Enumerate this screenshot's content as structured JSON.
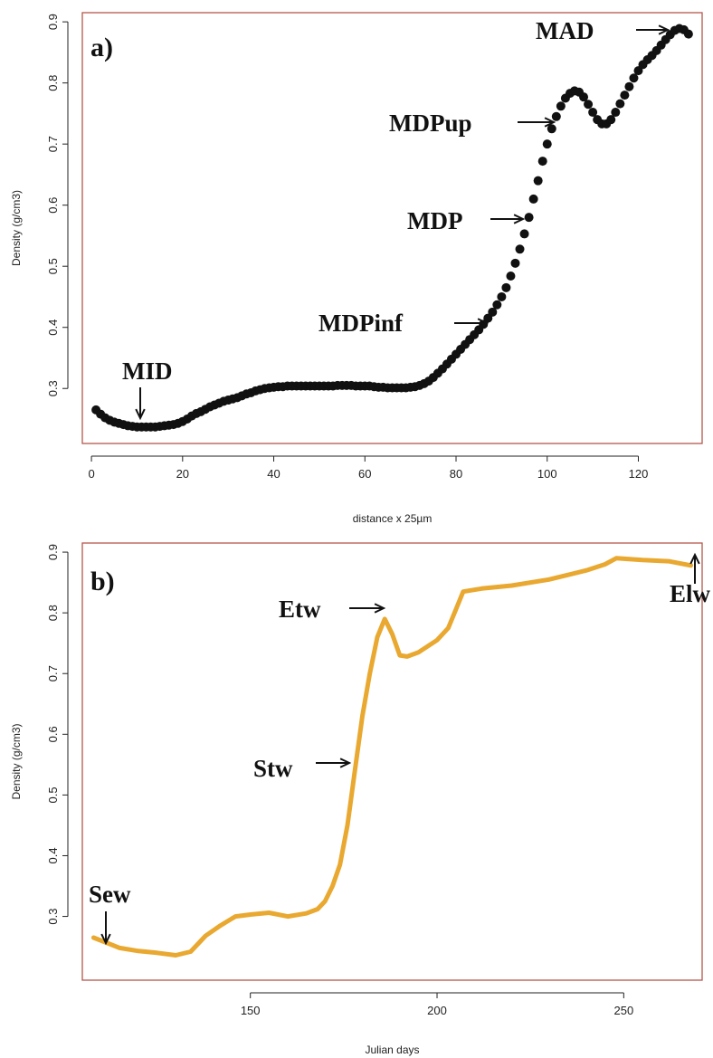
{
  "colors": {
    "frame": "#b5574a",
    "axis": "#222222",
    "series_a": "#111111",
    "series_b": "#e9a830",
    "annotation": "#111111"
  },
  "chart_data": [
    {
      "type": "scatter",
      "panel_label": "a)",
      "xlabel": "distance x 25µm",
      "ylabel": "Density (g/cm3)",
      "xlim": [
        -2,
        134
      ],
      "ylim": [
        0.21,
        0.915
      ],
      "xticks": [
        0,
        20,
        40,
        60,
        80,
        100,
        120
      ],
      "yticks": [
        0.3,
        0.4,
        0.5,
        0.6,
        0.7,
        0.8,
        0.9
      ],
      "grid": false,
      "x": [
        1,
        2,
        3,
        4,
        5,
        6,
        7,
        8,
        9,
        10,
        11,
        12,
        13,
        14,
        15,
        16,
        17,
        18,
        19,
        20,
        21,
        22,
        23,
        24,
        25,
        26,
        27,
        28,
        29,
        30,
        31,
        32,
        33,
        34,
        35,
        36,
        37,
        38,
        39,
        40,
        41,
        42,
        43,
        44,
        45,
        46,
        47,
        48,
        49,
        50,
        51,
        52,
        53,
        54,
        55,
        56,
        57,
        58,
        59,
        60,
        61,
        62,
        63,
        64,
        65,
        66,
        67,
        68,
        69,
        70,
        71,
        72,
        73,
        74,
        75,
        76,
        77,
        78,
        79,
        80,
        81,
        82,
        83,
        84,
        85,
        86,
        87,
        88,
        89,
        90,
        91,
        92,
        93,
        94,
        95,
        96,
        97,
        98,
        99,
        100,
        101,
        102,
        103,
        104,
        105,
        106,
        107,
        108,
        109,
        110,
        111,
        112,
        113,
        114,
        115,
        116,
        117,
        118,
        119,
        120,
        121,
        122,
        123,
        124,
        125,
        126,
        127,
        128,
        129,
        130,
        131
      ],
      "y": [
        0.265,
        0.258,
        0.252,
        0.248,
        0.245,
        0.243,
        0.241,
        0.239,
        0.238,
        0.237,
        0.237,
        0.237,
        0.237,
        0.237,
        0.238,
        0.239,
        0.24,
        0.241,
        0.243,
        0.246,
        0.25,
        0.255,
        0.259,
        0.262,
        0.266,
        0.27,
        0.273,
        0.276,
        0.279,
        0.281,
        0.283,
        0.285,
        0.288,
        0.291,
        0.293,
        0.296,
        0.298,
        0.3,
        0.301,
        0.302,
        0.303,
        0.303,
        0.304,
        0.304,
        0.304,
        0.304,
        0.304,
        0.304,
        0.304,
        0.304,
        0.304,
        0.304,
        0.304,
        0.305,
        0.305,
        0.305,
        0.305,
        0.304,
        0.304,
        0.304,
        0.304,
        0.303,
        0.302,
        0.302,
        0.301,
        0.301,
        0.301,
        0.301,
        0.301,
        0.302,
        0.303,
        0.305,
        0.308,
        0.312,
        0.318,
        0.325,
        0.332,
        0.34,
        0.348,
        0.356,
        0.364,
        0.372,
        0.38,
        0.388,
        0.396,
        0.405,
        0.415,
        0.425,
        0.437,
        0.45,
        0.465,
        0.484,
        0.505,
        0.528,
        0.553,
        0.58,
        0.61,
        0.64,
        0.672,
        0.7,
        0.725,
        0.745,
        0.762,
        0.775,
        0.783,
        0.787,
        0.785,
        0.777,
        0.765,
        0.752,
        0.74,
        0.733,
        0.733,
        0.74,
        0.752,
        0.766,
        0.78,
        0.794,
        0.808,
        0.82,
        0.83,
        0.838,
        0.845,
        0.853,
        0.862,
        0.871,
        0.879,
        0.886,
        0.889,
        0.887,
        0.88
      ],
      "annotations": [
        {
          "text": "MID",
          "x": 9,
          "y": 0.237,
          "direction": "down"
        },
        {
          "text": "MDPinf",
          "x": 88,
          "y": 0.4,
          "direction": "right"
        },
        {
          "text": "MDP",
          "x": 96,
          "y": 0.572,
          "direction": "right"
        },
        {
          "text": "MDPup",
          "x": 101,
          "y": 0.733,
          "direction": "right"
        },
        {
          "text": "MAD",
          "x": 124,
          "y": 0.887,
          "direction": "right"
        }
      ]
    },
    {
      "type": "line",
      "panel_label": "b)",
      "xlabel": "Julian days",
      "ylabel": "Density (g/cm3)",
      "xlim": [
        105,
        271
      ],
      "ylim": [
        0.195,
        0.915
      ],
      "xticks": [
        150,
        200,
        250
      ],
      "yticks": [
        0.3,
        0.4,
        0.5,
        0.6,
        0.7,
        0.8,
        0.9
      ],
      "grid": false,
      "x": [
        108,
        115,
        120,
        125,
        130,
        134,
        138,
        142,
        146,
        150,
        155,
        160,
        165,
        168,
        170,
        172,
        174,
        176,
        178,
        180,
        182,
        184,
        186,
        188,
        190,
        192,
        195,
        200,
        203,
        205,
        207,
        212,
        220,
        230,
        240,
        245,
        248,
        255,
        262,
        268
      ],
      "y": [
        0.265,
        0.248,
        0.243,
        0.24,
        0.236,
        0.242,
        0.268,
        0.285,
        0.3,
        0.303,
        0.306,
        0.3,
        0.305,
        0.312,
        0.325,
        0.35,
        0.385,
        0.45,
        0.54,
        0.63,
        0.7,
        0.76,
        0.79,
        0.765,
        0.73,
        0.728,
        0.735,
        0.755,
        0.775,
        0.805,
        0.835,
        0.84,
        0.845,
        0.855,
        0.87,
        0.88,
        0.89,
        0.887,
        0.885,
        0.878
      ],
      "annotations": [
        {
          "text": "Sew",
          "x": 108,
          "y": 0.265,
          "direction": "down"
        },
        {
          "text": "Stw",
          "x": 174,
          "y": 0.385,
          "direction": "right"
        },
        {
          "text": "Etw",
          "x": 183,
          "y": 0.73,
          "direction": "right"
        },
        {
          "text": "Elw",
          "x": 268,
          "y": 0.878,
          "direction": "up"
        }
      ]
    }
  ]
}
